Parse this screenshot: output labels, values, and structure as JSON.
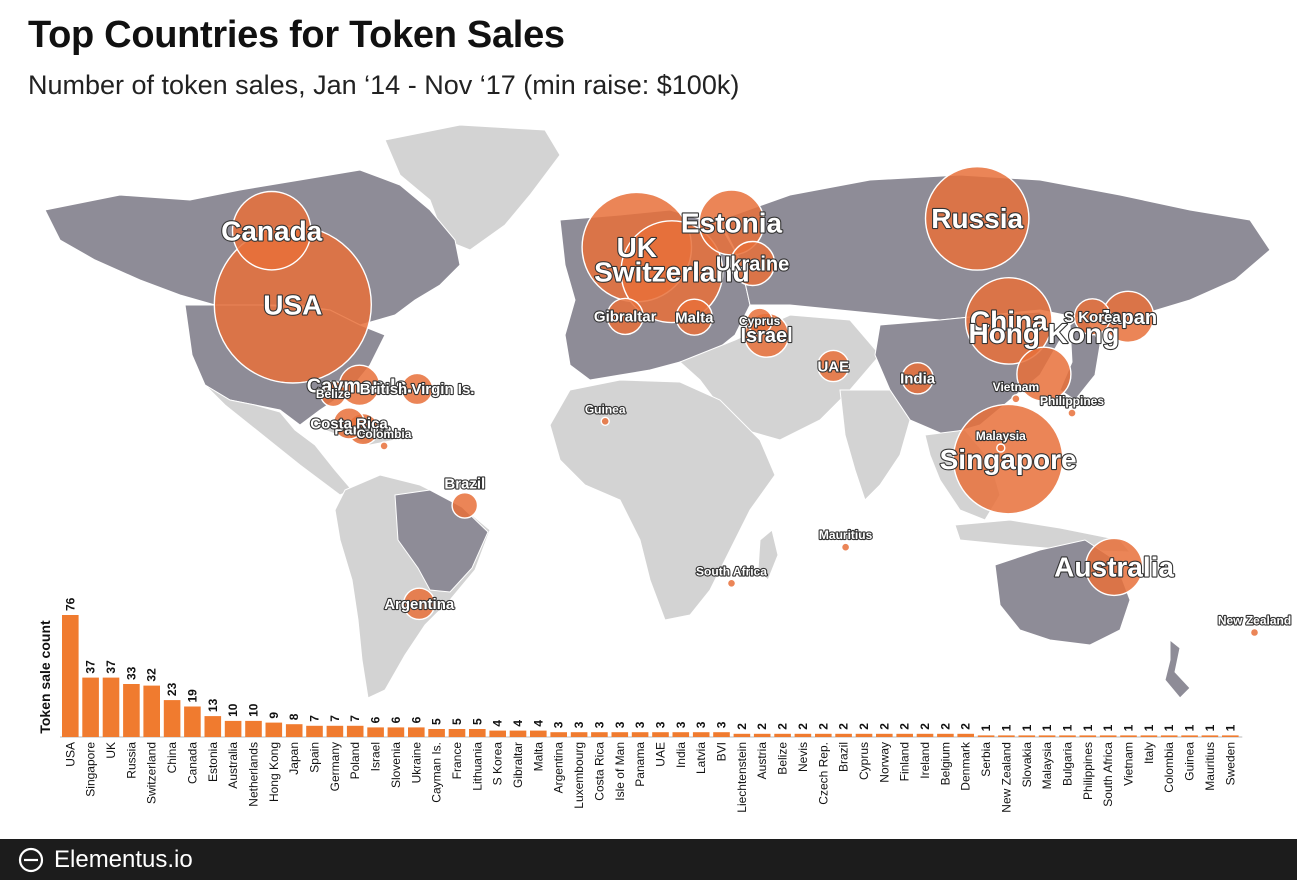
{
  "header": {
    "title": "Top Countries for Token Sales",
    "subtitle": "Number of token sales, Jan ‘14 - Nov ‘17 (min raise: $100k)"
  },
  "footer": {
    "brand": "Elementus.io"
  },
  "colors": {
    "bubble": "#e8703a",
    "bar": "#f07b2f",
    "land_highlight": "#8e8c97",
    "land_other": "#d3d3d3",
    "footer_bg": "#1c1c1c"
  },
  "chart_data": [
    {
      "type": "bubble-map",
      "bubbles": [
        {
          "label": "USA",
          "value": 76,
          "lon": -100,
          "lat": 39,
          "size": "large"
        },
        {
          "label": "Singapore",
          "value": 37,
          "lon": 103.8,
          "lat": 1.3,
          "size": "large"
        },
        {
          "label": "UK",
          "value": 37,
          "lon": -2,
          "lat": 53,
          "size": "large"
        },
        {
          "label": "Russia",
          "value": 33,
          "lon": 95,
          "lat": 60,
          "size": "large"
        },
        {
          "label": "Switzerland",
          "value": 32,
          "lon": 8,
          "lat": 47,
          "size": "large"
        },
        {
          "label": "China",
          "value": 23,
          "lon": 104,
          "lat": 35,
          "size": "large"
        },
        {
          "label": "Canada",
          "value": 19,
          "lon": -106,
          "lat": 57,
          "size": "large"
        },
        {
          "label": "Estonia",
          "value": 13,
          "lon": 25,
          "lat": 59,
          "size": "large"
        },
        {
          "label": "Australia",
          "value": 10,
          "lon": 134,
          "lat": -25,
          "size": "large"
        },
        {
          "label": "Hong Kong",
          "value": 9,
          "lon": 114,
          "lat": 22,
          "size": "large"
        },
        {
          "label": "Japan",
          "value": 8,
          "lon": 138,
          "lat": 36,
          "size": "medium"
        },
        {
          "label": "Ukraine",
          "value": 6,
          "lon": 31,
          "lat": 49,
          "size": "medium"
        },
        {
          "label": "Israel",
          "value": 6,
          "lon": 35,
          "lat": 31.5,
          "size": "medium"
        },
        {
          "label": "Cayman Is.",
          "value": 5,
          "lon": -81,
          "lat": 19.3,
          "size": "medium"
        },
        {
          "label": "S Korea",
          "value": 4,
          "lon": 127.8,
          "lat": 36,
          "size": "small"
        },
        {
          "label": "Gibraltar",
          "value": 4,
          "lon": -5.3,
          "lat": 36.1,
          "size": "small"
        },
        {
          "label": "Malta",
          "value": 4,
          "lon": 14.4,
          "lat": 35.9,
          "size": "small"
        },
        {
          "label": "Panama",
          "value": 3,
          "lon": -80,
          "lat": 8.6,
          "size": "small"
        },
        {
          "label": "UAE",
          "value": 3,
          "lon": 54,
          "lat": 24,
          "size": "small"
        },
        {
          "label": "India",
          "value": 3,
          "lon": 78,
          "lat": 21,
          "size": "small"
        },
        {
          "label": "Costa Rica",
          "value": 3,
          "lon": -84,
          "lat": 10,
          "size": "small"
        },
        {
          "label": "British Virgin Is.",
          "value": 3,
          "lon": -64.6,
          "lat": 18.4,
          "size": "small"
        },
        {
          "label": "Belize",
          "value": 2,
          "lon": -88.5,
          "lat": 17.2,
          "size": "tiny"
        },
        {
          "label": "Cyprus",
          "value": 2,
          "lon": 33,
          "lat": 35,
          "size": "tiny"
        },
        {
          "label": "Brazil",
          "value": 2,
          "lon": -51,
          "lat": -10,
          "size": "small"
        },
        {
          "label": "Argentina",
          "value": 3,
          "lon": -64,
          "lat": -34,
          "size": "small"
        },
        {
          "label": "Colombia",
          "value": 1,
          "lon": -74,
          "lat": 4.5,
          "size": "tiny"
        },
        {
          "label": "Guinea",
          "value": 1,
          "lon": -11,
          "lat": 10.5,
          "size": "tiny"
        },
        {
          "label": "Vietnam",
          "value": 1,
          "lon": 106,
          "lat": 16,
          "size": "tiny"
        },
        {
          "label": "Philippines",
          "value": 1,
          "lon": 122,
          "lat": 12.5,
          "size": "tiny"
        },
        {
          "label": "Malaysia",
          "value": 1,
          "lon": 101.7,
          "lat": 4,
          "size": "tiny"
        },
        {
          "label": "Mauritius",
          "value": 1,
          "lon": 57.5,
          "lat": -20.2,
          "size": "tiny"
        },
        {
          "label": "South Africa",
          "value": 1,
          "lon": 25,
          "lat": -29,
          "size": "tiny"
        },
        {
          "label": "New Zealand",
          "value": 1,
          "lon": 174,
          "lat": -41,
          "size": "tiny"
        }
      ]
    },
    {
      "type": "bar",
      "ylabel": "Token sale count",
      "ylim": [
        0,
        76
      ],
      "categories": [
        "USA",
        "Singapore",
        "UK",
        "Russia",
        "Switzerland",
        "China",
        "Canada",
        "Estonia",
        "Australia",
        "Netherlands",
        "Hong Kong",
        "Japan",
        "Spain",
        "Germany",
        "Poland",
        "Israel",
        "Slovenia",
        "Ukraine",
        "Cayman Is.",
        "France",
        "Lithuania",
        "S Korea",
        "Gibraltar",
        "Malta",
        "Argentina",
        "Luxembourg",
        "Costa Rica",
        "Isle of Man",
        "Panama",
        "UAE",
        "India",
        "Latvia",
        "BVI",
        "Liechtenstein",
        "Austria",
        "Belize",
        "Nevis",
        "Czech Rep.",
        "Brazil",
        "Cyprus",
        "Norway",
        "Finland",
        "Ireland",
        "Belgium",
        "Denmark",
        "Serbia",
        "New Zealand",
        "Slovakia",
        "Malaysia",
        "Bulgaria",
        "Philippines",
        "South Africa",
        "Vietnam",
        "Italy",
        "Colombia",
        "Guinea",
        "Mauritius",
        "Sweden"
      ],
      "values": [
        76,
        37,
        37,
        33,
        32,
        23,
        19,
        13,
        10,
        10,
        9,
        8,
        7,
        7,
        7,
        6,
        6,
        6,
        5,
        5,
        5,
        4,
        4,
        4,
        3,
        3,
        3,
        3,
        3,
        3,
        3,
        3,
        3,
        2,
        2,
        2,
        2,
        2,
        2,
        2,
        2,
        2,
        2,
        2,
        2,
        1,
        1,
        1,
        1,
        1,
        1,
        1,
        1,
        1,
        1,
        1,
        1,
        1
      ]
    }
  ]
}
